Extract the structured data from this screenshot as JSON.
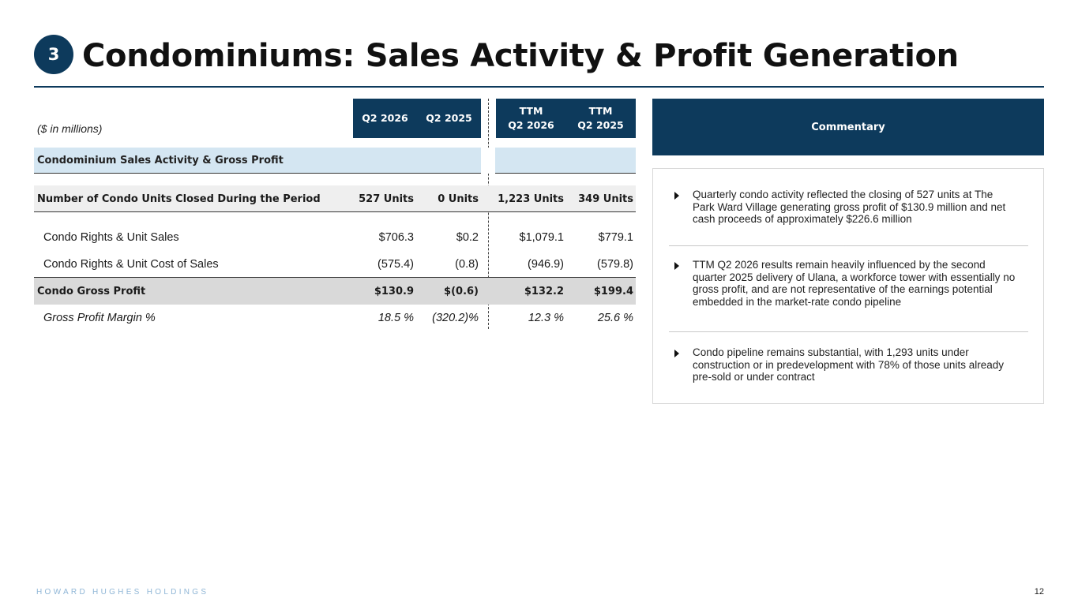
{
  "header": {
    "section_number": "3",
    "title": "Condominiums: Sales Activity & Profit Generation"
  },
  "table": {
    "units_note": "($ in millions)",
    "columns": {
      "q2_2026": "Q2 2026",
      "q2_2025": "Q2 2025",
      "ttm_2026_top": "TTM",
      "ttm_2026_bottom": "Q2 2026",
      "ttm_2025_top": "TTM",
      "ttm_2025_bottom": "Q2 2025"
    },
    "section_label": "Condominium Sales Activity & Gross Profit",
    "rows": [
      {
        "label": "Number of Condo Units Closed During the Period",
        "values": [
          "527 Units",
          "0 Units",
          "1,223 Units",
          "349 Units"
        ]
      },
      {
        "label": "Condo Rights & Unit Sales",
        "values": [
          "$706.3",
          "$0.2",
          "$1,079.1",
          "$779.1"
        ]
      },
      {
        "label": "Condo Rights & Unit Cost of Sales",
        "values": [
          "(575.4)",
          "(0.8)",
          "(946.9)",
          "(579.8)"
        ]
      },
      {
        "label": "Condo Gross Profit",
        "values": [
          "$130.9",
          "$(0.6)",
          "$132.2",
          "$199.4"
        ]
      },
      {
        "label": "Gross Profit Margin %",
        "values": [
          "18.5 %",
          "(320.2)%",
          "12.3 %",
          "25.6 %"
        ]
      }
    ]
  },
  "commentary": {
    "title": "Commentary",
    "bullets": [
      "Quarterly condo activity reflected the closing of 527 units at The Park Ward Village generating gross profit of $130.9 million and net cash proceeds of approximately $226.6 million",
      "TTM Q2 2026 results remain heavily influenced by the second quarter 2025 delivery of Ulana, a workforce tower with essentially no gross profit,  and are not representative of the earnings potential embedded in the market-rate condo pipeline",
      "Condo pipeline remains substantial, with 1,293 units under construction or in predevelopment with 78% of those units already pre-sold or under contract"
    ]
  },
  "footer": {
    "brand": "HOWARD HUGHES HOLDINGS",
    "page_number": "12"
  },
  "colors": {
    "navy": "#0d3a5c",
    "section_band": "#d4e6f2",
    "brand_text": "#8fb6d6"
  }
}
